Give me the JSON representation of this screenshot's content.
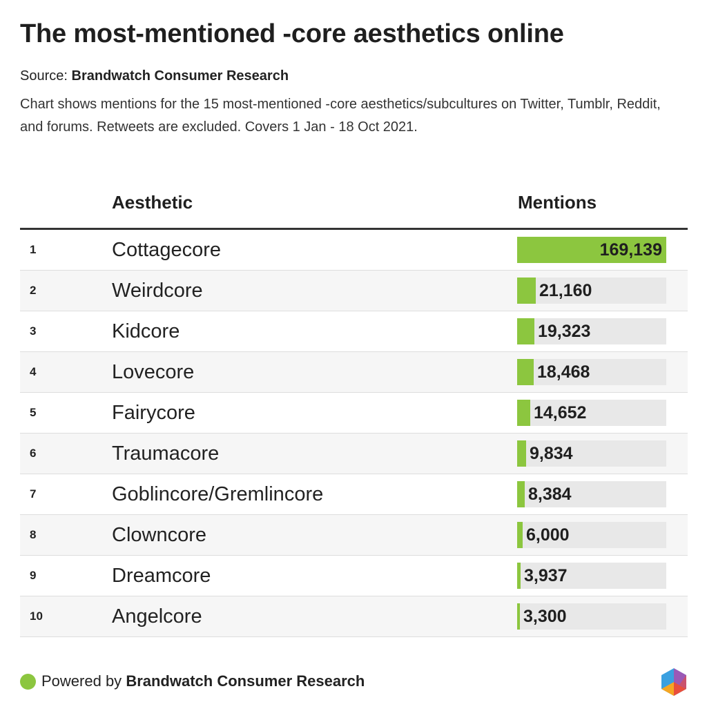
{
  "title": "The most-mentioned -core aesthetics online",
  "source": {
    "label": "Source:",
    "name": "Brandwatch Consumer Research"
  },
  "description": "Chart shows mentions for the 15 most-mentioned -core aesthetics/subcultures on Twitter, Tumblr, Reddit, and forums. Retweets are excluded. Covers 1 Jan - 18 Oct 2021.",
  "table": {
    "col_aesthetic": "Aesthetic",
    "col_mentions": "Mentions"
  },
  "footer": {
    "powered_by": "Powered by",
    "brand": "Brandwatch Consumer Research"
  },
  "colors": {
    "bar": "#8cc63f",
    "track": "#e8e8e8",
    "logo": [
      "#f5a623",
      "#e94e3c",
      "#9b59b6",
      "#3aa0e0"
    ]
  },
  "icons": {
    "footer_dot": "green-dot-icon",
    "logo": "brandwatch-logo-icon"
  },
  "chart_data": {
    "type": "table",
    "title": "The most-mentioned -core aesthetics online",
    "columns": [
      "Aesthetic",
      "Mentions"
    ],
    "max": 169139,
    "rows": [
      {
        "rank": "1",
        "name": "Cottagecore",
        "value": 169139,
        "label": "169,139"
      },
      {
        "rank": "2",
        "name": "Weirdcore",
        "value": 21160,
        "label": "21,160"
      },
      {
        "rank": "3",
        "name": "Kidcore",
        "value": 19323,
        "label": "19,323"
      },
      {
        "rank": "4",
        "name": "Lovecore",
        "value": 18468,
        "label": "18,468"
      },
      {
        "rank": "5",
        "name": "Fairycore",
        "value": 14652,
        "label": "14,652"
      },
      {
        "rank": "6",
        "name": "Traumacore",
        "value": 9834,
        "label": "9,834"
      },
      {
        "rank": "7",
        "name": "Goblincore/Gremlincore",
        "value": 8384,
        "label": "8,384"
      },
      {
        "rank": "8",
        "name": "Clowncore",
        "value": 6000,
        "label": "6,000"
      },
      {
        "rank": "9",
        "name": "Dreamcore",
        "value": 3937,
        "label": "3,937"
      },
      {
        "rank": "10",
        "name": "Angelcore",
        "value": 3300,
        "label": "3,300"
      }
    ]
  }
}
